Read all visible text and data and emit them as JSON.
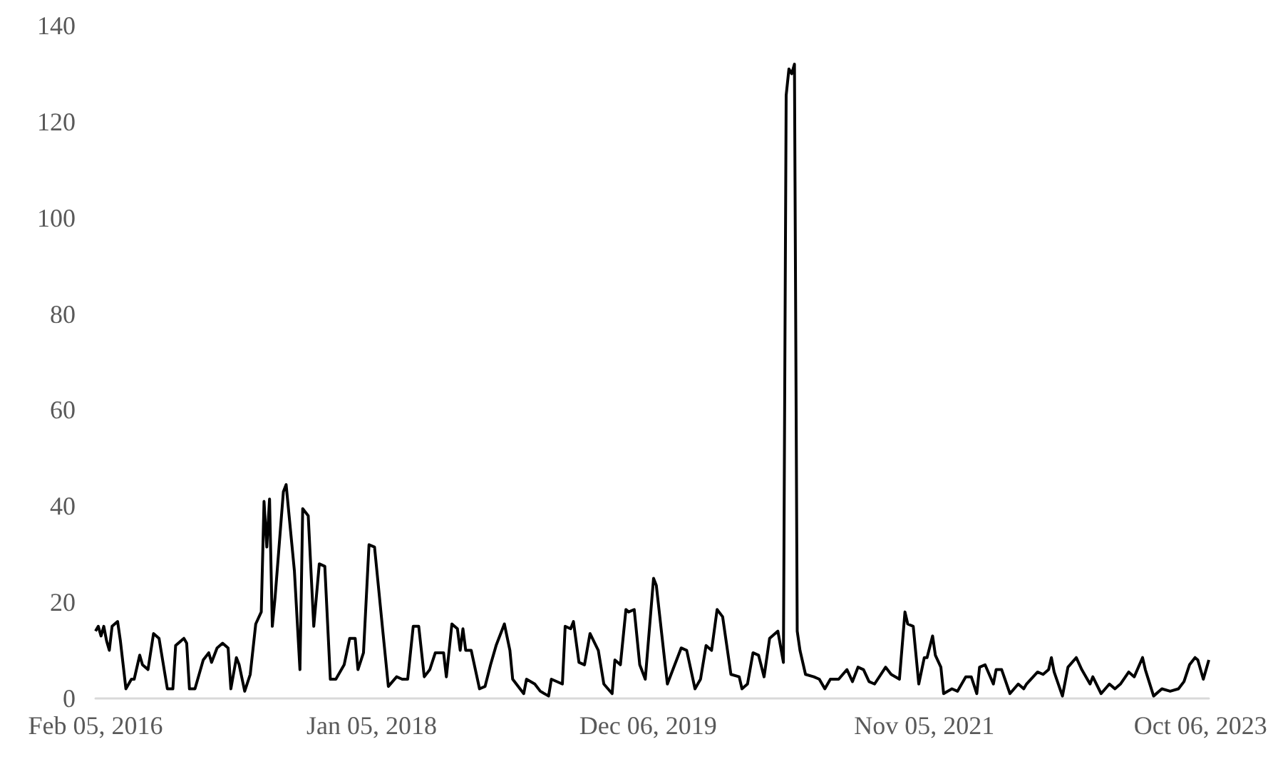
{
  "chart_data": {
    "type": "line",
    "color": "#000000",
    "x": [
      "2016-02-05",
      "2016-02-12",
      "2016-02-19",
      "2016-02-26",
      "2016-03-04",
      "2016-03-11",
      "2016-03-18",
      "2016-04-01",
      "2016-04-08",
      "2016-04-22",
      "2016-05-06",
      "2016-05-13",
      "2016-05-27",
      "2016-06-03",
      "2016-06-17",
      "2016-07-01",
      "2016-07-15",
      "2016-08-05",
      "2016-08-19",
      "2016-08-26",
      "2016-09-16",
      "2016-09-23",
      "2016-09-30",
      "2016-10-14",
      "2016-11-04",
      "2016-11-18",
      "2016-11-25",
      "2016-12-09",
      "2016-12-23",
      "2017-01-06",
      "2017-01-13",
      "2017-01-27",
      "2017-02-03",
      "2017-02-17",
      "2017-03-03",
      "2017-03-17",
      "2017-03-31",
      "2017-04-07",
      "2017-04-14",
      "2017-04-21",
      "2017-04-28",
      "2017-05-05",
      "2017-05-26",
      "2017-06-02",
      "2017-06-23",
      "2017-07-07",
      "2017-07-14",
      "2017-07-28",
      "2017-08-11",
      "2017-08-25",
      "2017-09-08",
      "2017-09-22",
      "2017-10-06",
      "2017-10-27",
      "2017-11-10",
      "2017-11-24",
      "2017-12-01",
      "2017-12-15",
      "2017-12-29",
      "2018-01-12",
      "2018-02-02",
      "2018-02-16",
      "2018-03-09",
      "2018-03-23",
      "2018-04-06",
      "2018-04-20",
      "2018-05-04",
      "2018-05-18",
      "2018-06-01",
      "2018-06-15",
      "2018-07-06",
      "2018-07-13",
      "2018-07-27",
      "2018-08-10",
      "2018-08-17",
      "2018-08-24",
      "2018-08-31",
      "2018-09-14",
      "2018-10-05",
      "2018-10-19",
      "2018-11-02",
      "2018-11-16",
      "2018-12-07",
      "2018-12-21",
      "2018-12-28",
      "2019-01-25",
      "2019-02-01",
      "2019-02-22",
      "2019-03-08",
      "2019-03-29",
      "2019-04-05",
      "2019-05-03",
      "2019-05-10",
      "2019-05-24",
      "2019-05-31",
      "2019-06-14",
      "2019-06-28",
      "2019-07-12",
      "2019-08-02",
      "2019-08-16",
      "2019-09-06",
      "2019-09-13",
      "2019-09-27",
      "2019-10-11",
      "2019-10-18",
      "2019-11-01",
      "2019-11-15",
      "2019-11-29",
      "2019-12-20",
      "2019-12-27",
      "2020-01-17",
      "2020-01-24",
      "2020-02-07",
      "2020-02-28",
      "2020-03-13",
      "2020-04-03",
      "2020-04-17",
      "2020-05-01",
      "2020-05-15",
      "2020-05-29",
      "2020-06-12",
      "2020-07-03",
      "2020-07-24",
      "2020-07-31",
      "2020-08-14",
      "2020-08-28",
      "2020-09-11",
      "2020-09-25",
      "2020-10-09",
      "2020-10-30",
      "2020-11-13",
      "2020-11-20",
      "2020-11-27",
      "2020-12-04",
      "2020-12-11",
      "2020-12-18",
      "2020-12-25",
      "2021-01-08",
      "2021-01-29",
      "2021-02-12",
      "2021-02-26",
      "2021-03-12",
      "2021-04-02",
      "2021-04-23",
      "2021-05-07",
      "2021-05-21",
      "2021-06-04",
      "2021-06-18",
      "2021-07-02",
      "2021-07-30",
      "2021-08-13",
      "2021-09-03",
      "2021-09-17",
      "2021-09-24",
      "2021-10-08",
      "2021-10-22",
      "2021-11-05",
      "2021-11-12",
      "2021-11-26",
      "2021-12-03",
      "2021-12-17",
      "2021-12-24",
      "2022-01-14",
      "2022-01-28",
      "2022-02-18",
      "2022-03-04",
      "2022-03-18",
      "2022-03-25",
      "2022-04-08",
      "2022-04-29",
      "2022-05-06",
      "2022-05-20",
      "2022-06-10",
      "2022-07-01",
      "2022-07-15",
      "2022-07-22",
      "2022-08-19",
      "2022-09-02",
      "2022-09-16",
      "2022-09-23",
      "2022-09-30",
      "2022-10-21",
      "2022-11-04",
      "2022-11-25",
      "2022-12-09",
      "2022-12-30",
      "2023-01-06",
      "2023-01-27",
      "2023-02-17",
      "2023-03-03",
      "2023-03-17",
      "2023-04-07",
      "2023-04-21",
      "2023-05-12",
      "2023-05-19",
      "2023-06-09",
      "2023-06-30",
      "2023-07-21",
      "2023-08-11",
      "2023-08-25",
      "2023-09-08",
      "2023-09-22",
      "2023-09-29",
      "2023-10-13",
      "2023-10-27"
    ],
    "values": [
      14,
      15,
      13,
      15,
      12,
      10,
      15,
      16,
      12,
      2,
      4,
      4,
      9,
      7,
      6,
      13.5,
      12.5,
      2,
      2,
      11,
      12.5,
      11.5,
      2,
      2,
      8,
      9.5,
      7.5,
      10.5,
      11.5,
      10.5,
      2,
      8.5,
      7,
      1.5,
      5,
      15.5,
      18,
      41,
      31.5,
      41.5,
      15,
      21,
      43,
      44.5,
      26.5,
      6,
      39.5,
      38,
      15,
      28,
      27.5,
      4,
      4,
      7,
      12.5,
      12.5,
      6,
      9.5,
      32,
      31.5,
      14,
      2.5,
      4.5,
      4,
      4,
      15,
      15,
      4.5,
      6,
      9.5,
      9.5,
      4.5,
      15.5,
      14.5,
      10,
      14.5,
      10,
      10,
      2,
      2.5,
      7,
      11,
      15.5,
      10,
      4,
      1,
      4,
      3,
      1.5,
      0.5,
      4,
      3,
      15,
      14.5,
      16,
      7.5,
      7,
      13.5,
      10,
      3,
      1,
      8,
      7,
      18.5,
      18,
      18.5,
      7,
      4,
      25,
      23.5,
      8,
      3,
      6,
      10.5,
      10,
      2,
      4,
      11,
      10,
      18.5,
      17,
      5,
      4.5,
      2,
      3,
      9.5,
      9,
      4.5,
      12.5,
      14,
      7.5,
      125.5,
      131,
      130,
      132,
      14,
      10,
      5,
      4.5,
      4,
      2,
      4,
      4,
      6,
      3.5,
      6.5,
      6,
      3.5,
      3,
      6.5,
      5,
      4,
      18,
      15.5,
      15,
      3,
      8.5,
      8.5,
      13,
      9,
      6.5,
      1,
      2,
      1.5,
      4.5,
      4.5,
      1,
      6.5,
      7,
      3,
      6,
      6,
      1,
      3,
      2,
      3,
      5.5,
      5,
      6,
      8.5,
      5.5,
      0.5,
      6.5,
      8.5,
      6,
      3,
      4.5,
      1,
      3,
      2,
      3,
      5.5,
      4.5,
      8.5,
      6,
      0.5,
      2,
      1.5,
      2,
      3.5,
      7,
      8.5,
      8,
      4,
      8
    ],
    "xlim": [
      "2016-02-05",
      "2023-10-27"
    ],
    "xticks": [
      {
        "value": "2016-02-05",
        "label": "Feb 05, 2016"
      },
      {
        "value": "2018-01-05",
        "label": "Jan 05, 2018"
      },
      {
        "value": "2019-12-06",
        "label": "Dec 06, 2019"
      },
      {
        "value": "2021-11-05",
        "label": "Nov 05, 2021"
      },
      {
        "value": "2023-10-06",
        "label": "Oct 06, 2023"
      }
    ],
    "ylim": [
      0,
      140
    ],
    "yticks": [
      0,
      20,
      40,
      60,
      80,
      100,
      120,
      140
    ]
  }
}
